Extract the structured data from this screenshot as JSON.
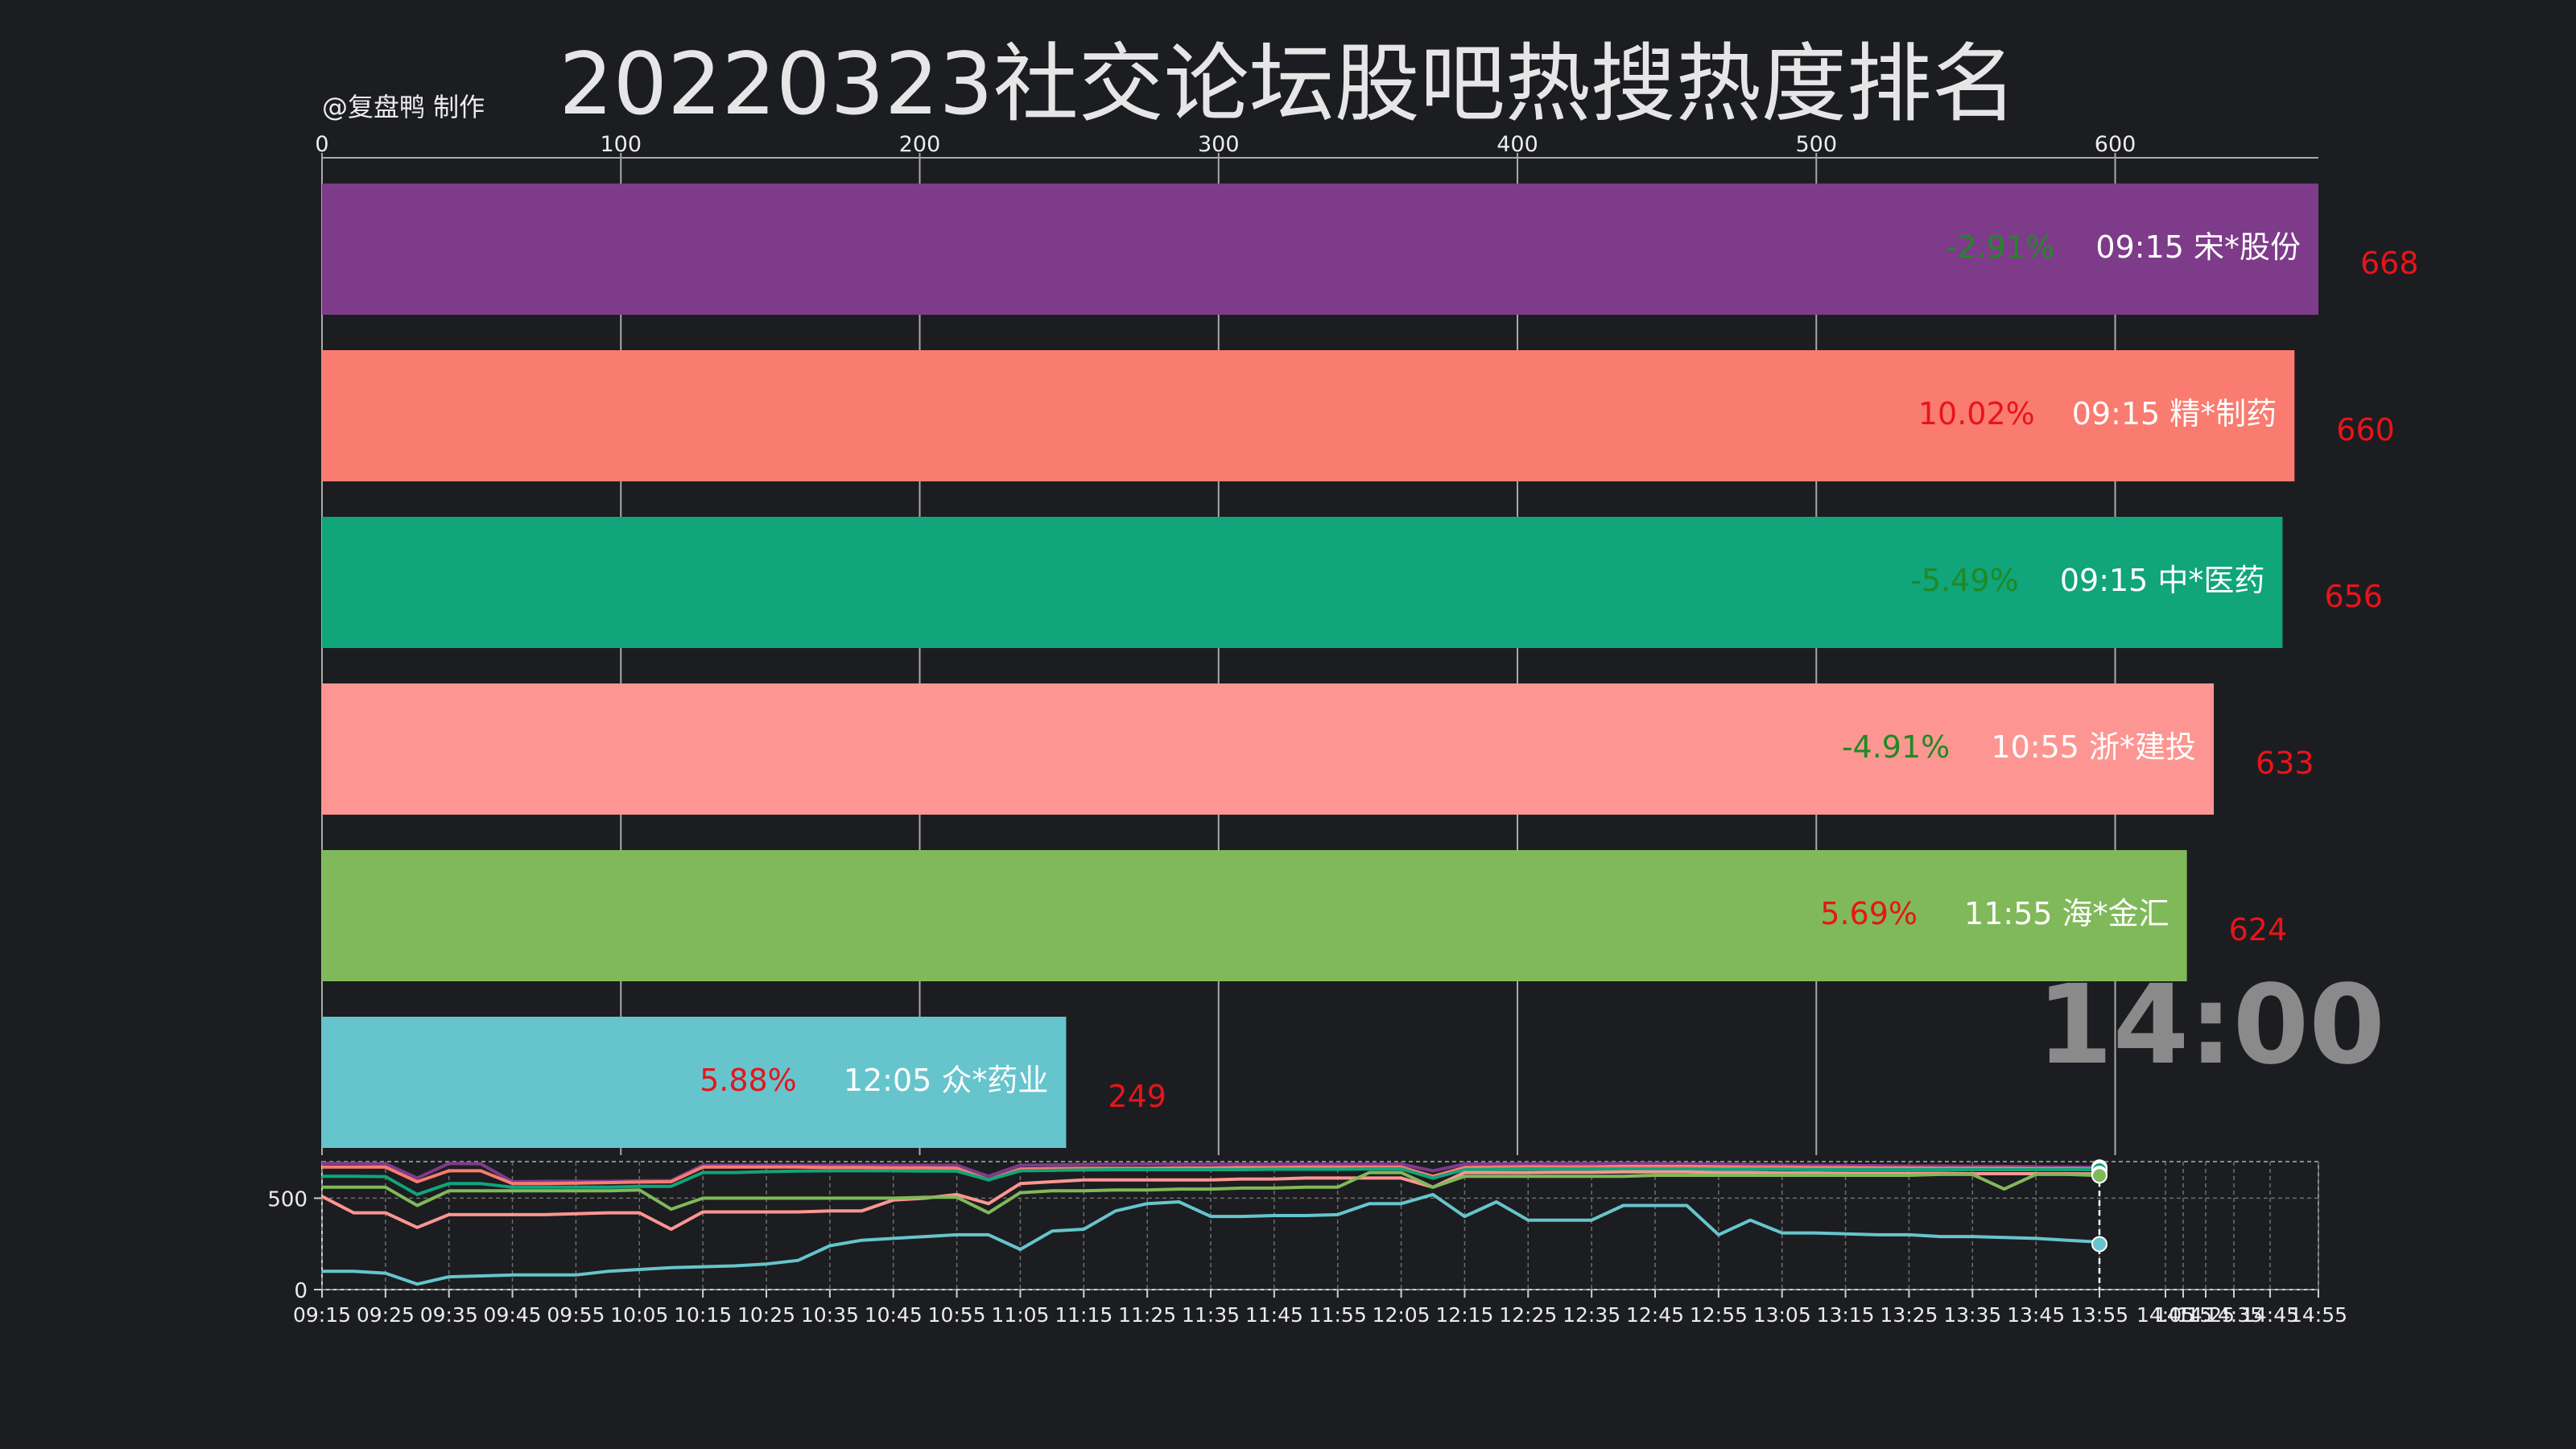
{
  "title": "20220323社交论坛股吧热搜热度排名",
  "credit": "@复盘鸭 制作",
  "current_time": "14:00",
  "chart_data": [
    {
      "type": "bar",
      "orientation": "horizontal",
      "xlim": [
        0,
        668
      ],
      "xticks": [
        0,
        100,
        200,
        300,
        400,
        500,
        600
      ],
      "grid": true,
      "bars": [
        {
          "label": "09:15 宋*股份",
          "value": 668,
          "value_label": "668",
          "change": "-2.91%",
          "color": "#7e3b8a"
        },
        {
          "label": "09:15 精*制药",
          "value": 660,
          "value_label": "660",
          "change": "10.02%",
          "color": "#fa7b6f"
        },
        {
          "label": "09:15 中*医药",
          "value": 656,
          "value_label": "656",
          "change": "-5.49%",
          "color": "#10a57a"
        },
        {
          "label": "10:55 浙*建投",
          "value": 633,
          "value_label": "633",
          "change": "-4.91%",
          "color": "#fd9692"
        },
        {
          "label": "11:55 海*金汇",
          "value": 624,
          "value_label": "624",
          "change": "5.69%",
          "color": "#80b959"
        },
        {
          "label": "12:05 众*药业",
          "value": 249,
          "value_label": "249",
          "change": "5.88%",
          "color": "#66c5cc"
        }
      ],
      "colors": {
        "positive": "#e8141a",
        "negative": "#1e8a24",
        "value_label": "#e8141a"
      }
    },
    {
      "type": "line",
      "ylim": [
        0,
        700
      ],
      "yticks": [
        0,
        500
      ],
      "grid": true,
      "x": [
        "09:15",
        "09:20",
        "09:25",
        "09:30",
        "09:35",
        "09:40",
        "09:45",
        "09:50",
        "09:55",
        "10:00",
        "10:05",
        "10:10",
        "10:15",
        "10:20",
        "10:25",
        "10:30",
        "10:35",
        "10:40",
        "10:45",
        "10:50",
        "10:55",
        "11:00",
        "11:05",
        "11:10",
        "11:15",
        "11:20",
        "11:25",
        "11:30",
        "11:35",
        "11:40",
        "11:45",
        "11:50",
        "11:55",
        "12:00",
        "12:05",
        "12:10",
        "12:15",
        "12:20",
        "12:25",
        "12:30",
        "12:35",
        "12:40",
        "12:45",
        "12:50",
        "12:55",
        "13:00",
        "13:05",
        "13:10",
        "13:15",
        "13:20",
        "13:25",
        "13:30",
        "13:35",
        "13:40",
        "13:45",
        "13:50",
        "13:55",
        "14:00"
      ],
      "xticks": [
        "09:15",
        "09:25",
        "09:35",
        "09:45",
        "09:55",
        "10:05",
        "10:15",
        "10:25",
        "10:35",
        "10:45",
        "10:55",
        "11:05",
        "11:15",
        "11:25",
        "11:35",
        "11:45",
        "11:55",
        "12:05",
        "12:15",
        "12:25",
        "12:35",
        "12:45",
        "12:55",
        "13:05",
        "13:15",
        "13:25",
        "13:35",
        "13:45",
        "13:55",
        "14:05",
        "14:15",
        "14:25",
        "14:35",
        "14:45",
        "14:55"
      ],
      "series": [
        {
          "color": "#7e3b8a",
          "values": [
            690,
            690,
            688,
            610,
            690,
            688,
            590,
            592,
            592,
            592,
            595,
            596,
            680,
            680,
            680,
            680,
            680,
            680,
            680,
            680,
            680,
            620,
            680,
            682,
            684,
            685,
            686,
            686,
            686,
            686,
            686,
            686,
            686,
            686,
            686,
            650,
            686,
            688,
            688,
            690,
            690,
            690,
            690,
            688,
            686,
            684,
            680,
            680,
            678,
            678,
            676,
            676,
            674,
            674,
            672,
            670,
            669,
            668
          ]
        },
        {
          "color": "#fa7b6f",
          "values": [
            670,
            670,
            670,
            590,
            650,
            650,
            580,
            580,
            582,
            585,
            588,
            590,
            670,
            670,
            670,
            670,
            668,
            668,
            666,
            666,
            664,
            600,
            660,
            662,
            664,
            664,
            664,
            666,
            666,
            668,
            668,
            670,
            670,
            670,
            670,
            620,
            668,
            670,
            672,
            672,
            672,
            674,
            674,
            674,
            672,
            670,
            670,
            668,
            668,
            666,
            666,
            664,
            664,
            664,
            662,
            662,
            660,
            660
          ]
        },
        {
          "color": "#10a57a",
          "values": [
            620,
            620,
            618,
            520,
            580,
            580,
            560,
            560,
            560,
            560,
            565,
            565,
            640,
            640,
            645,
            648,
            650,
            650,
            650,
            648,
            648,
            600,
            650,
            652,
            654,
            656,
            656,
            656,
            656,
            656,
            658,
            658,
            658,
            660,
            660,
            610,
            656,
            658,
            660,
            660,
            660,
            660,
            660,
            660,
            658,
            658,
            658,
            656,
            656,
            656,
            656,
            656,
            656,
            656,
            656,
            656,
            656,
            656
          ]
        },
        {
          "color": "#fd9692",
          "values": [
            510,
            420,
            420,
            340,
            410,
            410,
            410,
            410,
            415,
            420,
            420,
            330,
            425,
            425,
            425,
            425,
            430,
            430,
            490,
            500,
            520,
            470,
            580,
            590,
            600,
            600,
            600,
            600,
            600,
            605,
            605,
            610,
            610,
            610,
            610,
            560,
            640,
            640,
            640,
            642,
            642,
            644,
            644,
            644,
            640,
            640,
            638,
            638,
            636,
            636,
            636,
            636,
            634,
            634,
            634,
            634,
            633,
            633
          ]
        },
        {
          "color": "#80b959",
          "values": [
            560,
            560,
            560,
            460,
            540,
            540,
            540,
            540,
            540,
            540,
            545,
            440,
            500,
            500,
            500,
            500,
            500,
            500,
            500,
            505,
            505,
            420,
            530,
            540,
            540,
            545,
            545,
            550,
            550,
            555,
            555,
            560,
            560,
            640,
            640,
            560,
            620,
            620,
            620,
            620,
            620,
            620,
            625,
            625,
            625,
            625,
            625,
            625,
            625,
            625,
            625,
            630,
            630,
            550,
            630,
            630,
            624,
            624
          ]
        },
        {
          "color": "#66c5cc",
          "values": [
            100,
            100,
            90,
            30,
            70,
            75,
            80,
            80,
            80,
            100,
            110,
            120,
            125,
            130,
            140,
            160,
            240,
            270,
            280,
            290,
            300,
            300,
            220,
            320,
            330,
            430,
            470,
            480,
            400,
            400,
            405,
            405,
            410,
            470,
            470,
            520,
            400,
            480,
            380,
            380,
            380,
            460,
            460,
            460,
            300,
            380,
            310,
            310,
            305,
            300,
            300,
            290,
            290,
            285,
            280,
            270,
            260,
            249
          ]
        }
      ]
    }
  ]
}
